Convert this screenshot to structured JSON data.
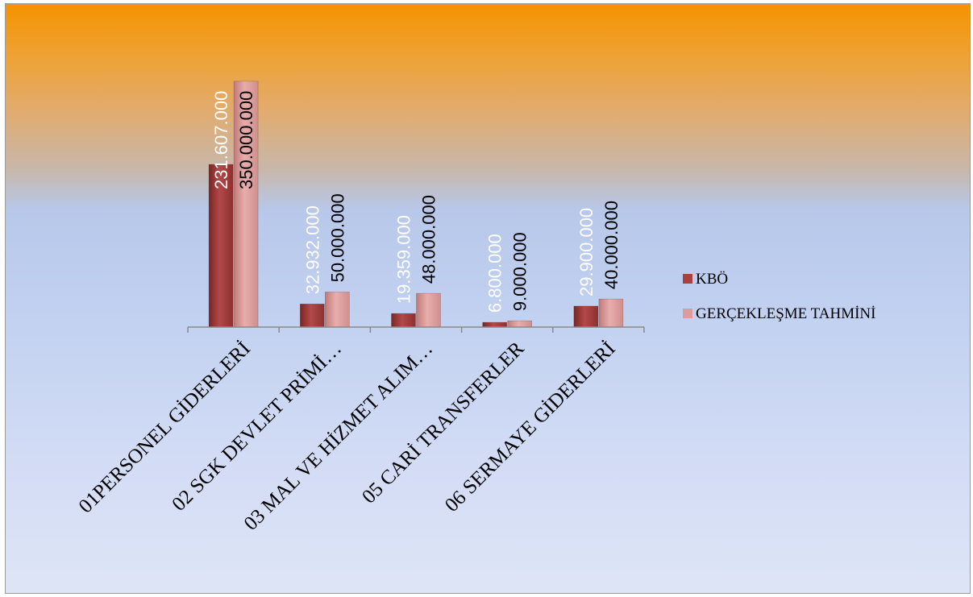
{
  "chart_data": {
    "type": "bar",
    "categories": [
      "01PERSONEL GİDERLERİ",
      "02 SGK DEVLET PRİMİ…",
      "03 MAL VE HİZMET ALIM…",
      "05 CARİ TRANSFERLER",
      "06 SERMAYE GİDERLERİ"
    ],
    "series": [
      {
        "name": "KBÖ",
        "values": [
          231607000,
          32932000,
          19359000,
          6800000,
          29900000
        ],
        "labels": [
          "231.607.000",
          "32.932.000",
          "19.359.000",
          "6.800.000",
          "29.900.000"
        ],
        "color": "#a8413f",
        "label_color": "#ffffff"
      },
      {
        "name": "GERÇEKLEŞME TAHMİNİ",
        "values": [
          350000000,
          50000000,
          48000000,
          9000000,
          40000000
        ],
        "labels": [
          "350.000.000",
          "50.000.000",
          "48.000.000",
          "9.000.000",
          "40.000.000"
        ],
        "color": "#dc9c9a",
        "label_color": "#000000"
      }
    ],
    "xlabel": "",
    "ylabel": "",
    "ylim": [
      0,
      400000000
    ],
    "grid": false,
    "legend": "right",
    "style": "3d-bar"
  }
}
